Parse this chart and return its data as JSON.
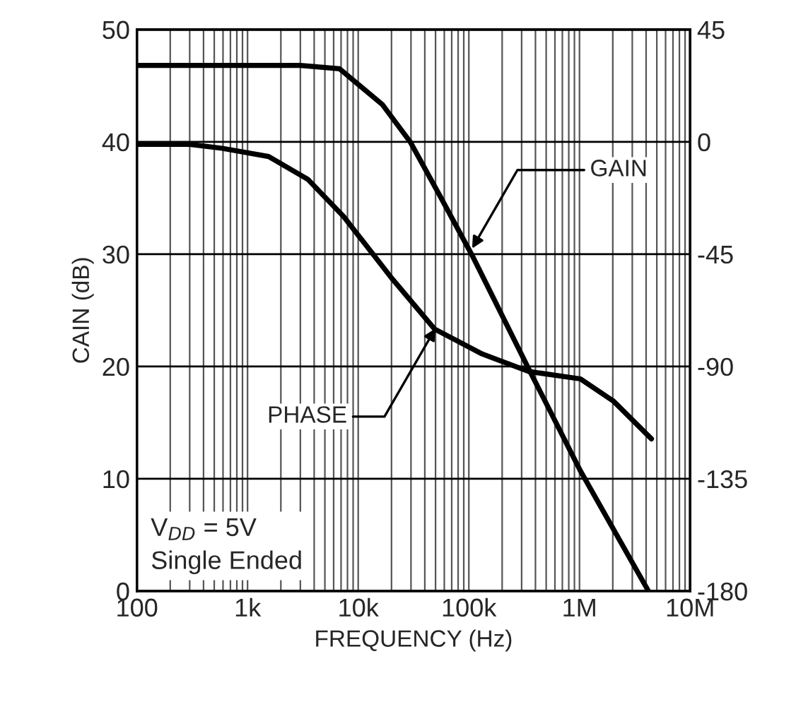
{
  "chart_data": {
    "type": "line",
    "xlabel": "FREQUENCY (Hz)",
    "ylabel": "CAIN (dB)",
    "log": "x",
    "grid": true,
    "marker": "none",
    "line_style": "solid",
    "xlim": [
      100,
      10000000
    ],
    "xticks": [
      {
        "value": 100,
        "label": "100"
      },
      {
        "value": 1000,
        "label": "1k"
      },
      {
        "value": 10000,
        "label": "10k"
      },
      {
        "value": 100000,
        "label": "100k"
      },
      {
        "value": 1000000,
        "label": "1M"
      },
      {
        "value": 10000000,
        "label": "10M"
      }
    ],
    "ylim": [
      0,
      50
    ],
    "yticks": [
      0,
      10,
      20,
      30,
      40,
      50
    ],
    "y2lim": [
      -180,
      45
    ],
    "y2ticks": [
      -180,
      -135,
      -90,
      -45,
      0,
      45
    ],
    "series": [
      {
        "color": "#000000",
        "x": [
          100,
          1000,
          3000,
          6800,
          16600,
          29500,
          54000,
          107000,
          347000,
          1020000,
          4200000
        ],
        "values": [
          46.8,
          46.8,
          46.8,
          46.5,
          43.3,
          40,
          35.3,
          29.9,
          19.8,
          10.7,
          0
        ]
      },
      {
        "color": "#000000",
        "axis": "y2",
        "x": [
          100,
          300,
          590,
          1550,
          3500,
          7400,
          20400,
          49000,
          132000,
          347000,
          1020000,
          2040000,
          4470000
        ],
        "values": [
          -1,
          -1,
          -2.6,
          -5.9,
          -15,
          -30,
          -55,
          -75,
          -85,
          -92,
          -95,
          -104,
          -119
        ]
      }
    ],
    "annotations": [
      {
        "text": "GAIN",
        "x": 107000,
        "y": 30.5
      },
      {
        "text": "PHASE",
        "x": 50000,
        "y": 23.4
      },
      "V$_{DD}$ = 5V",
      "Single Ended"
    ]
  }
}
